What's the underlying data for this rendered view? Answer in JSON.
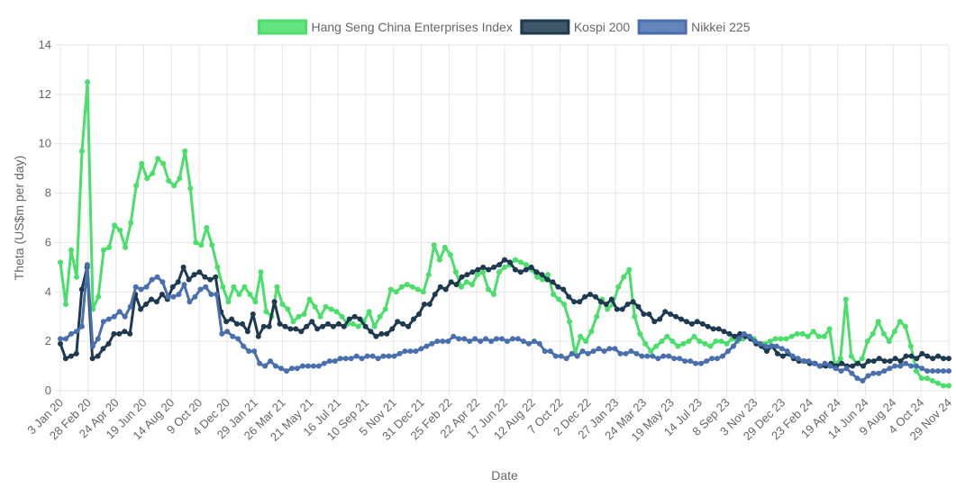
{
  "chart_data": {
    "type": "line",
    "title": "",
    "xlabel": "Date",
    "ylabel": "Theta (US$m per day)",
    "ylim": [
      0,
      14
    ],
    "yticks": [
      0,
      2,
      4,
      6,
      8,
      10,
      12,
      14
    ],
    "legend_position": "top",
    "grid": true,
    "x_tick_labels": [
      "3 Jan 20",
      "28 Feb 20",
      "24 Apr 20",
      "19 Jun 20",
      "14 Aug 20",
      "9 Oct 20",
      "4 Dec 20",
      "29 Jan 21",
      "26 Mar 21",
      "21 May 21",
      "16 Jul 21",
      "10 Sep 21",
      "5 Nov 21",
      "31 Dec 21",
      "25 Feb 22",
      "22 Apr 22",
      "17 Jun 22",
      "12 Aug 22",
      "7 Oct 22",
      "2 Dec 22",
      "27 Jan 23",
      "24 Mar 23",
      "19 May 23",
      "14 Jul 23",
      "8 Sep 23",
      "3 Nov 23",
      "29 Dec 23",
      "23 Feb 24",
      "19 Apr 24",
      "14 Jun 24",
      "9 Aug 24",
      "4 Oct 24",
      "29 Nov 24"
    ],
    "series": [
      {
        "name": "Hang Seng China Enterprises Index",
        "color": "#4ade6a",
        "values": [
          5.2,
          3.5,
          5.7,
          4.6,
          9.7,
          12.5,
          3.3,
          3.8,
          5.7,
          5.8,
          6.7,
          6.5,
          5.8,
          6.8,
          8.3,
          9.2,
          8.6,
          8.8,
          9.4,
          9.2,
          8.5,
          8.3,
          8.6,
          9.7,
          8.2,
          6.0,
          5.9,
          6.6,
          5.9,
          5.0,
          4.2,
          3.6,
          4.2,
          3.9,
          4.2,
          3.9,
          3.6,
          4.8,
          3.2,
          3.0,
          4.2,
          3.5,
          3.3,
          2.8,
          3.0,
          3.1,
          3.7,
          3.4,
          3.0,
          3.4,
          3.3,
          3.2,
          3.0,
          2.7,
          2.7,
          2.6,
          2.8,
          3.2,
          2.6,
          3.0,
          3.3,
          4.1,
          4.0,
          4.2,
          4.3,
          4.2,
          4.1,
          4.0,
          4.7,
          5.9,
          5.3,
          5.8,
          5.5,
          4.8,
          4.2,
          4.4,
          4.3,
          4.7,
          4.8,
          4.1,
          3.9,
          4.8,
          5.0,
          5.1,
          5.3,
          5.2,
          5.1,
          4.9,
          4.6,
          4.5,
          4.7,
          3.9,
          3.7,
          3.5,
          2.8,
          1.5,
          2.2,
          2.0,
          2.4,
          3.0,
          3.7,
          3.3,
          3.5,
          4.2,
          4.6,
          4.9,
          3.0,
          2.3,
          1.9,
          1.6,
          1.8,
          2.0,
          2.2,
          2.0,
          1.8,
          1.9,
          2.0,
          2.2,
          2.0,
          1.9,
          1.8,
          2.0,
          2.0,
          1.9,
          2.1,
          2.0,
          2.1,
          2.2,
          2.1,
          1.9,
          1.9,
          2.0,
          2.1,
          2.1,
          2.1,
          2.2,
          2.3,
          2.3,
          2.2,
          2.4,
          2.2,
          2.2,
          2.5,
          1.0,
          1.3,
          3.7,
          1.4,
          1.1,
          1.3,
          2.0,
          2.3,
          2.8,
          2.3,
          2.0,
          2.4,
          2.8,
          2.6,
          1.8,
          0.8,
          0.5,
          0.5,
          0.4,
          0.3,
          0.2,
          0.2
        ]
      },
      {
        "name": "Kospi 200",
        "color": "#1e3a50",
        "values": [
          1.9,
          1.3,
          1.4,
          1.5,
          4.1,
          5.0,
          1.3,
          1.4,
          1.7,
          1.9,
          2.3,
          2.3,
          2.4,
          2.3,
          3.9,
          3.3,
          3.5,
          3.7,
          3.6,
          3.9,
          3.7,
          4.2,
          4.4,
          5.0,
          4.5,
          4.7,
          4.8,
          4.6,
          4.5,
          4.6,
          3.2,
          2.8,
          2.9,
          2.7,
          2.7,
          2.4,
          3.1,
          2.2,
          2.6,
          2.6,
          3.6,
          2.7,
          2.6,
          2.5,
          2.5,
          2.4,
          2.6,
          2.8,
          2.5,
          2.6,
          2.7,
          2.6,
          2.7,
          2.6,
          2.9,
          3.0,
          2.9,
          2.6,
          2.4,
          2.2,
          2.3,
          2.3,
          2.5,
          2.8,
          2.7,
          2.6,
          2.9,
          3.1,
          3.5,
          3.5,
          3.9,
          4.2,
          4.1,
          4.4,
          4.3,
          4.6,
          4.7,
          4.8,
          4.9,
          5.0,
          4.9,
          5.0,
          5.1,
          5.3,
          5.2,
          4.9,
          4.8,
          4.9,
          5.0,
          4.8,
          4.7,
          4.5,
          4.4,
          4.2,
          4.1,
          3.8,
          3.6,
          3.6,
          3.8,
          3.9,
          3.8,
          3.6,
          3.5,
          3.7,
          3.3,
          3.3,
          3.5,
          3.6,
          3.4,
          3.1,
          3.1,
          2.8,
          2.9,
          3.2,
          3.1,
          3.0,
          2.9,
          2.8,
          2.7,
          2.8,
          2.7,
          2.6,
          2.5,
          2.5,
          2.4,
          2.3,
          2.2,
          2.3,
          2.2,
          2.1,
          1.9,
          1.8,
          1.6,
          1.8,
          1.5,
          1.4,
          1.5,
          1.3,
          1.2,
          1.2,
          1.1,
          1.1,
          1.0,
          1.0,
          1.1,
          1.0,
          1.1,
          1.0,
          1.0,
          1.1,
          1.0,
          1.2,
          1.2,
          1.3,
          1.2,
          1.2,
          1.3,
          1.2,
          1.4,
          1.4,
          1.3,
          1.5,
          1.4,
          1.3,
          1.4,
          1.3,
          1.3
        ]
      },
      {
        "name": "Nikkei 225",
        "color": "#4a6fae",
        "values": [
          2.1,
          2.1,
          2.3,
          2.4,
          2.6,
          5.1,
          1.8,
          2.1,
          2.8,
          2.9,
          3.0,
          3.2,
          3.0,
          3.4,
          4.2,
          4.1,
          4.2,
          4.5,
          4.6,
          4.4,
          3.8,
          3.8,
          3.9,
          4.3,
          3.6,
          3.8,
          4.1,
          4.2,
          3.9,
          3.9,
          2.3,
          2.4,
          2.2,
          2.1,
          1.8,
          1.6,
          1.6,
          1.1,
          1.0,
          1.2,
          1.0,
          0.9,
          0.8,
          0.9,
          0.9,
          1.0,
          1.0,
          1.0,
          1.0,
          1.1,
          1.2,
          1.2,
          1.3,
          1.3,
          1.3,
          1.4,
          1.3,
          1.4,
          1.4,
          1.3,
          1.4,
          1.4,
          1.4,
          1.5,
          1.6,
          1.6,
          1.6,
          1.7,
          1.8,
          1.9,
          2.0,
          2.0,
          2.0,
          2.2,
          2.1,
          2.1,
          2.0,
          2.1,
          2.0,
          2.1,
          2.0,
          2.1,
          2.1,
          2.0,
          2.1,
          2.1,
          2.0,
          1.9,
          2.0,
          1.9,
          1.6,
          1.6,
          1.4,
          1.4,
          1.3,
          1.5,
          1.4,
          1.6,
          1.5,
          1.6,
          1.7,
          1.6,
          1.7,
          1.7,
          1.5,
          1.5,
          1.6,
          1.5,
          1.4,
          1.4,
          1.4,
          1.3,
          1.4,
          1.4,
          1.3,
          1.3,
          1.2,
          1.2,
          1.1,
          1.1,
          1.2,
          1.3,
          1.3,
          1.4,
          1.6,
          1.8,
          2.1,
          2.3,
          2.2,
          2.0,
          1.9,
          1.8,
          1.8,
          1.8,
          1.7,
          1.6,
          1.4,
          1.3,
          1.2,
          1.2,
          1.1,
          1.0,
          1.1,
          1.0,
          0.9,
          0.8,
          0.9,
          0.7,
          0.5,
          0.4,
          0.6,
          0.7,
          0.7,
          0.8,
          0.9,
          1.0,
          1.0,
          1.1,
          1.0,
          1.0,
          0.9,
          0.8,
          0.8,
          0.8,
          0.8,
          0.8
        ]
      }
    ]
  }
}
